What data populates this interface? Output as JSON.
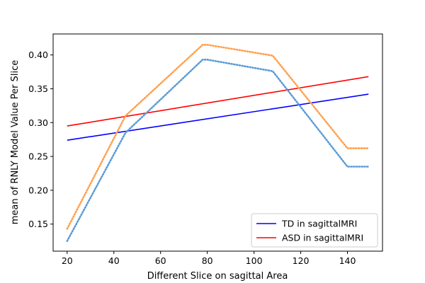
{
  "chart_data": {
    "type": "line",
    "title": "",
    "xlabel": "Different Slice on sagittal Area",
    "ylabel": "mean of RNLY Model Value Per Slice",
    "xlim": [
      14,
      155
    ],
    "ylim": [
      0.11,
      0.431
    ],
    "xticks": [
      20,
      40,
      60,
      80,
      100,
      120,
      140
    ],
    "yticks": [
      0.15,
      0.2,
      0.25,
      0.3,
      0.35,
      0.4
    ],
    "ytick_labels": [
      "0.15",
      "0.20",
      "0.25",
      "0.30",
      "0.35",
      "0.40"
    ],
    "grid": false,
    "legend_position": "lower-right",
    "series": [
      {
        "name": "TD in sagittalMRI",
        "style": "solid",
        "color": "#0000ff",
        "x": [
          20,
          149
        ],
        "y": [
          0.274,
          0.342
        ]
      },
      {
        "name": "ASD in sagittalMRI",
        "style": "solid",
        "color": "#ff0000",
        "x": [
          20,
          149
        ],
        "y": [
          0.295,
          0.368
        ]
      },
      {
        "style": "dotted",
        "color": "#5b9bd5",
        "x": [
          20,
          45,
          78,
          80,
          108,
          140,
          149
        ],
        "y": [
          0.125,
          0.285,
          0.393,
          0.393,
          0.376,
          0.235,
          0.235
        ]
      },
      {
        "style": "dotted",
        "color": "#ffa04d",
        "x": [
          20,
          45,
          78,
          80,
          108,
          140,
          149
        ],
        "y": [
          0.143,
          0.31,
          0.415,
          0.415,
          0.399,
          0.262,
          0.262
        ]
      }
    ]
  }
}
